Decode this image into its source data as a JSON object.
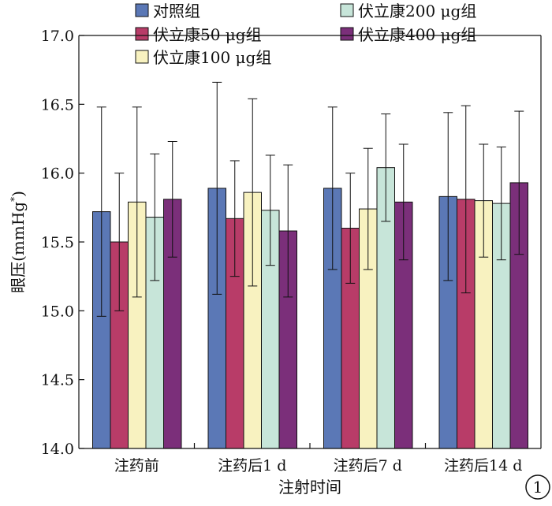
{
  "chart_data": {
    "type": "bar",
    "xlabel": "注射时间",
    "ylabel_main": "眼压(mmHg",
    "ylabel_sup": "*",
    "ylabel_close": ")",
    "ylim": [
      14.0,
      17.0
    ],
    "yticks": [
      "14.0",
      "14.5",
      "15.0",
      "15.5",
      "16.0",
      "16.5",
      "17.0"
    ],
    "yticks_values": [
      14.0,
      14.5,
      15.0,
      15.5,
      16.0,
      16.5,
      17.0
    ],
    "categories": [
      "注药前",
      "注药后1 d",
      "注药后7 d",
      "注药后14 d"
    ],
    "series": [
      {
        "name": "对照组",
        "color": "#5b78b6",
        "values": [
          15.72,
          15.89,
          15.89,
          15.83
        ],
        "error": [
          0.76,
          0.77,
          0.59,
          0.61
        ]
      },
      {
        "name": "伏立康50 μg组",
        "color": "#b83c68",
        "values": [
          15.5,
          15.67,
          15.6,
          15.81
        ],
        "error": [
          0.5,
          0.42,
          0.4,
          0.68
        ]
      },
      {
        "name": "伏立康100 μg组",
        "color": "#f8f2c0",
        "values": [
          15.79,
          15.86,
          15.74,
          15.8
        ],
        "error": [
          0.69,
          0.68,
          0.44,
          0.41
        ]
      },
      {
        "name": "伏立康200 μg组",
        "color": "#c7e5d9",
        "values": [
          15.68,
          15.73,
          16.04,
          15.78
        ],
        "error": [
          0.46,
          0.4,
          0.39,
          0.41
        ]
      },
      {
        "name": "伏立康400 μg组",
        "color": "#7b2f7a",
        "values": [
          15.81,
          15.58,
          15.79,
          15.93
        ],
        "error": [
          0.42,
          0.48,
          0.42,
          0.52
        ]
      }
    ],
    "legend_position": "top",
    "grid": false
  },
  "panel_label": "1"
}
